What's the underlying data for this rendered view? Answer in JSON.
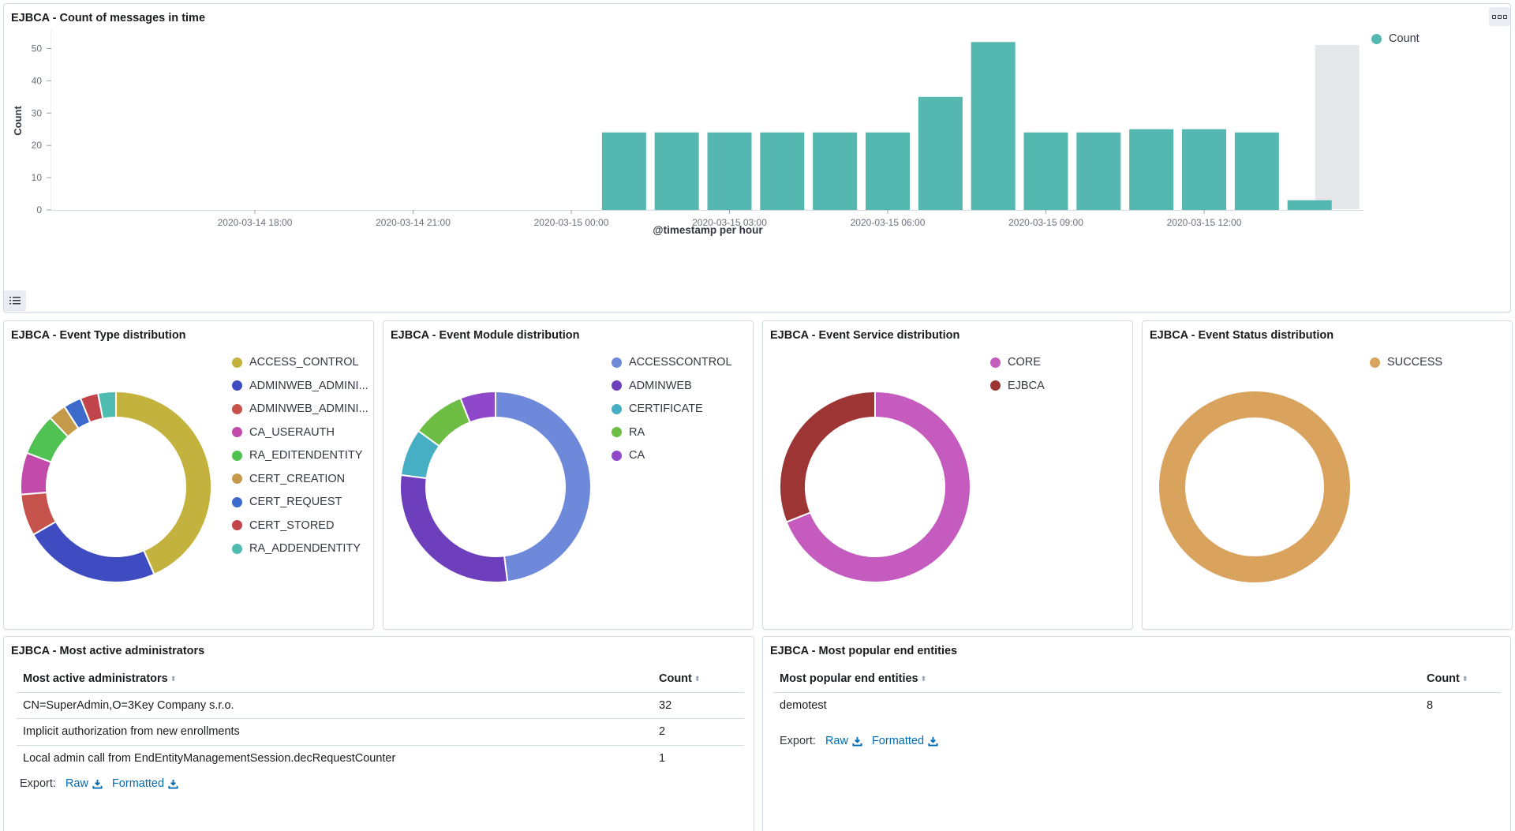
{
  "time_panel": {
    "title": "EJBCA - Count of messages in time",
    "legend": "Count",
    "color": "#54b7b0",
    "highlight_color": "#e6e7ea",
    "chart_data": {
      "type": "bar",
      "ylabel": "Count",
      "xlabel": "@timestamp per hour",
      "ylim": [
        0,
        55
      ],
      "y_ticks": [
        "0",
        "10",
        "20",
        "30",
        "40",
        "50"
      ],
      "x_tick_labels": [
        "2020-03-14 18:00",
        "2020-03-14 21:00",
        "2020-03-15 00:00",
        "2020-03-15 03:00",
        "2020-03-15 06:00",
        "2020-03-15 09:00",
        "2020-03-15 12:00"
      ],
      "x": [
        "2020-03-15 01:00",
        "2020-03-15 02:00",
        "2020-03-15 03:00",
        "2020-03-15 04:00",
        "2020-03-15 05:00",
        "2020-03-15 06:00",
        "2020-03-15 07:00",
        "2020-03-15 08:00",
        "2020-03-15 09:00",
        "2020-03-15 10:00",
        "2020-03-15 11:00",
        "2020-03-15 12:00",
        "2020-03-15 13:00",
        "2020-03-15 14:00"
      ],
      "values": [
        24,
        24,
        24,
        24,
        24,
        24,
        35,
        52,
        24,
        24,
        25,
        25,
        24,
        3
      ]
    }
  },
  "pie_panels": [
    {
      "title": "EJBCA - Event Type distribution",
      "chart_data": {
        "type": "pie",
        "labels": [
          "ACCESS_CONTROL",
          "ADMINWEB_ADMINI...",
          "ADMINWEB_ADMINI...",
          "CA_USERAUTH",
          "RA_EDITENDENTITY",
          "CERT_CREATION",
          "CERT_REQUEST",
          "CERT_STORED",
          "RA_ADDENDENTITY"
        ],
        "values": [
          43,
          23,
          7,
          7,
          7,
          3,
          3,
          3,
          3
        ],
        "colors": [
          "#c3b23d",
          "#3f4bc1",
          "#c5534b",
          "#c24aaa",
          "#50c153",
          "#c59a4b",
          "#3d6bcc",
          "#c2444b",
          "#50bbb0"
        ]
      }
    },
    {
      "title": "EJBCA - Event Module distribution",
      "chart_data": {
        "type": "pie",
        "labels": [
          "ACCESSCONTROL",
          "ADMINWEB",
          "CERTIFICATE",
          "RA",
          "CA"
        ],
        "values": [
          48,
          29,
          8,
          9,
          6
        ],
        "colors": [
          "#6e89d9",
          "#6e3fbd",
          "#47afc4",
          "#6dbc43",
          "#8f48c9"
        ]
      }
    },
    {
      "title": "EJBCA - Event Service distribution",
      "chart_data": {
        "type": "pie",
        "labels": [
          "CORE",
          "EJBCA"
        ],
        "values": [
          69,
          31
        ],
        "colors": [
          "#c55bbf",
          "#9e3535"
        ]
      }
    },
    {
      "title": "EJBCA - Event Status distribution",
      "chart_data": {
        "type": "pie",
        "labels": [
          "SUCCESS"
        ],
        "values": [
          100
        ],
        "colors": [
          "#d9a25d"
        ]
      }
    }
  ],
  "admins_panel": {
    "title": "EJBCA - Most active administrators",
    "columns": [
      "Most active administrators",
      "Count"
    ],
    "rows": [
      [
        "CN=SuperAdmin,O=3Key Company s.r.o.",
        "32"
      ],
      [
        "Implicit authorization from new enrollments",
        "2"
      ],
      [
        "Local admin call from EndEntityManagementSession.decRequestCounter",
        "1"
      ]
    ],
    "export_label": "Export:",
    "raw_label": "Raw",
    "formatted_label": "Formatted"
  },
  "entities_panel": {
    "title": "EJBCA - Most popular end entities",
    "columns": [
      "Most popular end entities",
      "Count"
    ],
    "rows": [
      [
        "demotest",
        "8"
      ]
    ],
    "export_label": "Export:",
    "raw_label": "Raw",
    "formatted_label": "Formatted"
  }
}
